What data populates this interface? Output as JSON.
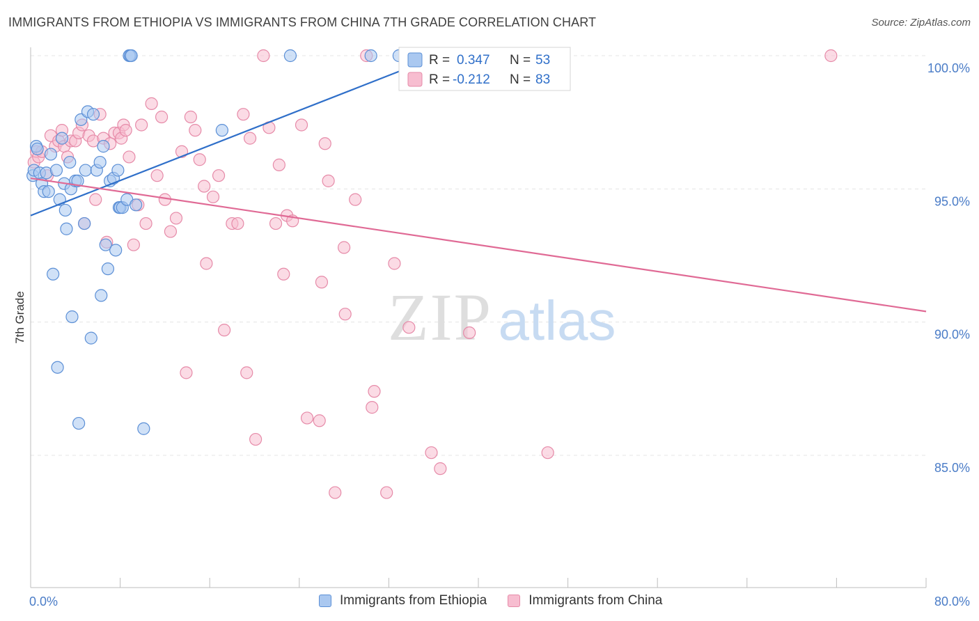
{
  "header": {
    "title": "IMMIGRANTS FROM ETHIOPIA VS IMMIGRANTS FROM CHINA 7TH GRADE CORRELATION CHART",
    "source": "Source: ZipAtlas.com"
  },
  "watermark": {
    "zip": "ZIP",
    "atlas": "atlas"
  },
  "colors": {
    "ethiopia_fill": "#aac8f0",
    "ethiopia_stroke": "#5b8fd6",
    "ethiopia_line": "#2f6fc9",
    "china_fill": "#f7bdd0",
    "china_stroke": "#e68aa8",
    "china_line": "#e06a95",
    "axis_label": "#4a7cc7",
    "grid": "#e4e4e4"
  },
  "legend_box": {
    "rows": [
      {
        "r_label": "R =",
        "r_value": "0.347",
        "n_label": "N =",
        "n_value": "53"
      },
      {
        "r_label": "R =",
        "r_value": "-0.212",
        "n_label": "N =",
        "n_value": "83"
      }
    ]
  },
  "chart_data": {
    "type": "scatter",
    "title": "IMMIGRANTS FROM ETHIOPIA VS IMMIGRANTS FROM CHINA 7TH GRADE CORRELATION CHART",
    "xlabel": "",
    "ylabel": "7th Grade",
    "xlim": [
      0,
      80
    ],
    "ylim": [
      80.5,
      100.5
    ],
    "x_tick_labels": [
      "0.0%",
      "80.0%"
    ],
    "y_ticks": [
      85,
      90,
      95,
      100
    ],
    "y_tick_labels": [
      "85.0%",
      "90.0%",
      "95.0%",
      "100.0%"
    ],
    "grid": true,
    "legend": "bottom-center",
    "series": [
      {
        "name": "Immigrants from Ethiopia",
        "R": 0.347,
        "N": 53,
        "trend": {
          "x": [
            0,
            36.5
          ],
          "y": [
            94.0,
            100.0
          ]
        },
        "points": [
          [
            0.2,
            95.5
          ],
          [
            0.3,
            95.7
          ],
          [
            0.5,
            96.6
          ],
          [
            0.6,
            96.5
          ],
          [
            0.8,
            95.6
          ],
          [
            1.0,
            95.2
          ],
          [
            1.2,
            94.9
          ],
          [
            1.4,
            95.6
          ],
          [
            1.6,
            94.9
          ],
          [
            1.8,
            96.3
          ],
          [
            2.0,
            91.8
          ],
          [
            2.3,
            95.7
          ],
          [
            2.4,
            88.3
          ],
          [
            2.6,
            94.6
          ],
          [
            2.8,
            96.9
          ],
          [
            3.0,
            95.2
          ],
          [
            3.1,
            94.2
          ],
          [
            3.2,
            93.5
          ],
          [
            3.5,
            96.0
          ],
          [
            3.6,
            95.0
          ],
          [
            3.7,
            90.2
          ],
          [
            4.0,
            95.3
          ],
          [
            4.2,
            95.3
          ],
          [
            4.3,
            86.2
          ],
          [
            4.5,
            97.6
          ],
          [
            4.8,
            93.7
          ],
          [
            4.9,
            95.7
          ],
          [
            5.1,
            97.9
          ],
          [
            5.4,
            89.4
          ],
          [
            5.6,
            97.8
          ],
          [
            5.9,
            95.7
          ],
          [
            6.2,
            96.0
          ],
          [
            6.3,
            91.0
          ],
          [
            6.5,
            96.6
          ],
          [
            6.7,
            92.9
          ],
          [
            6.9,
            92.0
          ],
          [
            7.1,
            95.3
          ],
          [
            7.4,
            95.4
          ],
          [
            7.6,
            92.7
          ],
          [
            7.8,
            95.7
          ],
          [
            7.9,
            94.3
          ],
          [
            8.0,
            94.3
          ],
          [
            8.2,
            94.3
          ],
          [
            8.6,
            94.6
          ],
          [
            8.8,
            100.0
          ],
          [
            8.9,
            100.0
          ],
          [
            9.0,
            100.0
          ],
          [
            9.4,
            94.4
          ],
          [
            10.1,
            86.0
          ],
          [
            17.1,
            97.2
          ],
          [
            23.2,
            100.0
          ],
          [
            30.4,
            100.0
          ],
          [
            32.9,
            100.0
          ]
        ]
      },
      {
        "name": "Immigrants from China",
        "R": -0.212,
        "N": 83,
        "trend": {
          "x": [
            0,
            80
          ],
          "y": [
            95.4,
            90.4
          ]
        },
        "points": [
          [
            0.3,
            96.0
          ],
          [
            0.5,
            96.4
          ],
          [
            0.7,
            96.2
          ],
          [
            1.0,
            96.4
          ],
          [
            1.5,
            95.5
          ],
          [
            1.8,
            97.0
          ],
          [
            2.2,
            96.6
          ],
          [
            2.5,
            96.8
          ],
          [
            2.8,
            97.2
          ],
          [
            3.0,
            96.6
          ],
          [
            3.3,
            96.2
          ],
          [
            3.6,
            96.8
          ],
          [
            4.0,
            96.8
          ],
          [
            4.3,
            97.1
          ],
          [
            4.6,
            97.4
          ],
          [
            4.8,
            93.7
          ],
          [
            5.2,
            97.0
          ],
          [
            5.6,
            96.8
          ],
          [
            5.8,
            94.6
          ],
          [
            6.2,
            97.8
          ],
          [
            6.5,
            96.9
          ],
          [
            6.8,
            93.0
          ],
          [
            7.1,
            96.7
          ],
          [
            7.5,
            97.1
          ],
          [
            7.9,
            97.1
          ],
          [
            8.1,
            96.9
          ],
          [
            8.3,
            97.4
          ],
          [
            8.5,
            97.2
          ],
          [
            8.8,
            96.2
          ],
          [
            9.2,
            92.9
          ],
          [
            9.6,
            94.4
          ],
          [
            9.9,
            97.4
          ],
          [
            10.3,
            93.7
          ],
          [
            10.8,
            98.2
          ],
          [
            11.3,
            95.5
          ],
          [
            11.7,
            97.7
          ],
          [
            12.0,
            94.6
          ],
          [
            12.5,
            93.4
          ],
          [
            13.0,
            93.9
          ],
          [
            13.5,
            96.4
          ],
          [
            13.9,
            88.1
          ],
          [
            14.3,
            97.7
          ],
          [
            14.7,
            97.2
          ],
          [
            15.1,
            96.1
          ],
          [
            15.5,
            95.1
          ],
          [
            15.7,
            92.2
          ],
          [
            16.3,
            94.7
          ],
          [
            16.8,
            95.5
          ],
          [
            17.3,
            89.7
          ],
          [
            18.0,
            93.7
          ],
          [
            18.5,
            93.7
          ],
          [
            19.0,
            97.8
          ],
          [
            19.3,
            88.1
          ],
          [
            19.6,
            96.9
          ],
          [
            20.1,
            85.6
          ],
          [
            20.8,
            100.0
          ],
          [
            21.3,
            97.3
          ],
          [
            21.9,
            93.7
          ],
          [
            22.2,
            95.9
          ],
          [
            22.6,
            91.8
          ],
          [
            22.9,
            94.0
          ],
          [
            23.4,
            93.8
          ],
          [
            24.2,
            97.4
          ],
          [
            24.7,
            86.4
          ],
          [
            25.8,
            86.3
          ],
          [
            26.0,
            91.5
          ],
          [
            26.3,
            96.7
          ],
          [
            26.6,
            95.3
          ],
          [
            27.2,
            83.6
          ],
          [
            28.0,
            92.8
          ],
          [
            28.1,
            90.3
          ],
          [
            29.0,
            94.6
          ],
          [
            30.0,
            100.0
          ],
          [
            30.5,
            86.8
          ],
          [
            30.7,
            87.4
          ],
          [
            31.8,
            83.6
          ],
          [
            32.5,
            92.2
          ],
          [
            33.8,
            89.8
          ],
          [
            35.8,
            85.1
          ],
          [
            36.6,
            84.5
          ],
          [
            39.2,
            89.6
          ],
          [
            46.2,
            85.1
          ],
          [
            71.5,
            100.0
          ]
        ]
      }
    ]
  }
}
